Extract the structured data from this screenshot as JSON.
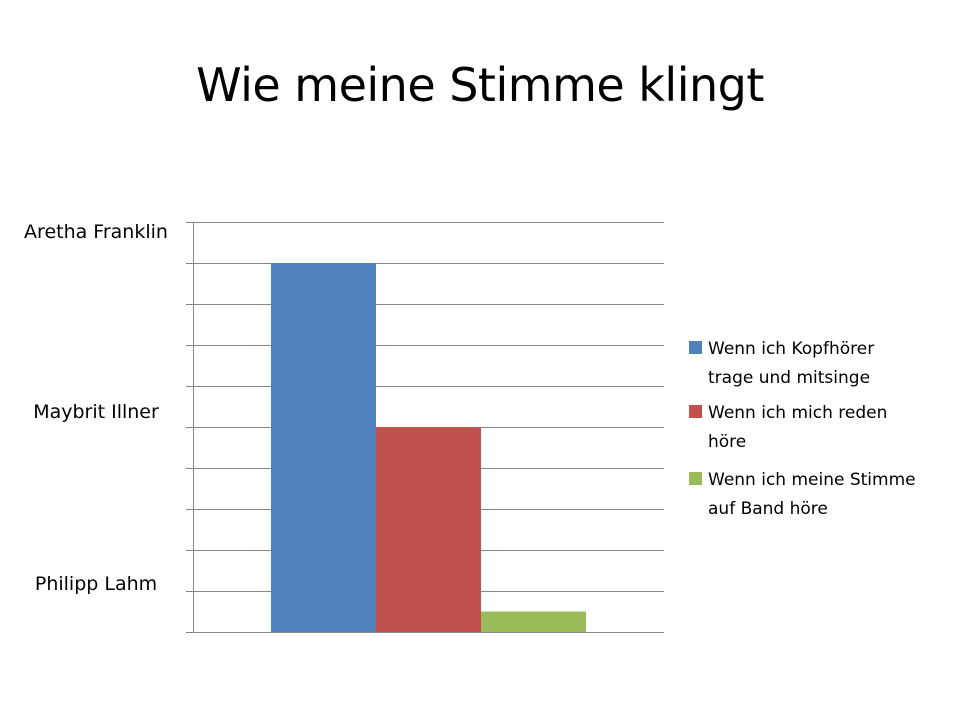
{
  "title": "Wie meine Stimme klingt",
  "chart_data": {
    "type": "bar",
    "title": "Wie meine Stimme klingt",
    "categories": [
      ""
    ],
    "series": [
      {
        "name": "Wenn ich Kopfhörer trage und mitsinge",
        "name_lines": [
          "Wenn ich Kopfhörer",
          "trage und mitsinge"
        ],
        "values": [
          9
        ],
        "color": "#4F81BD"
      },
      {
        "name": "Wenn ich mich reden höre",
        "name_lines": [
          "Wenn ich mich reden",
          "höre"
        ],
        "values": [
          5
        ],
        "color": "#C0504D"
      },
      {
        "name": "Wenn ich meine Stimme auf Band höre",
        "name_lines": [
          "Wenn ich meine Stimme",
          "auf Band höre"
        ],
        "values": [
          0.5
        ],
        "color": "#9BBB59"
      }
    ],
    "ylim": [
      0,
      10
    ],
    "y_tick_labels": [
      {
        "value": 10,
        "label": "Aretha Franklin"
      },
      {
        "value": 5,
        "label": "Maybrit Illner"
      },
      {
        "value": 1,
        "label": "Philipp Lahm"
      }
    ],
    "grid": true,
    "gridline_color": "#868686",
    "legend_position": "right"
  }
}
